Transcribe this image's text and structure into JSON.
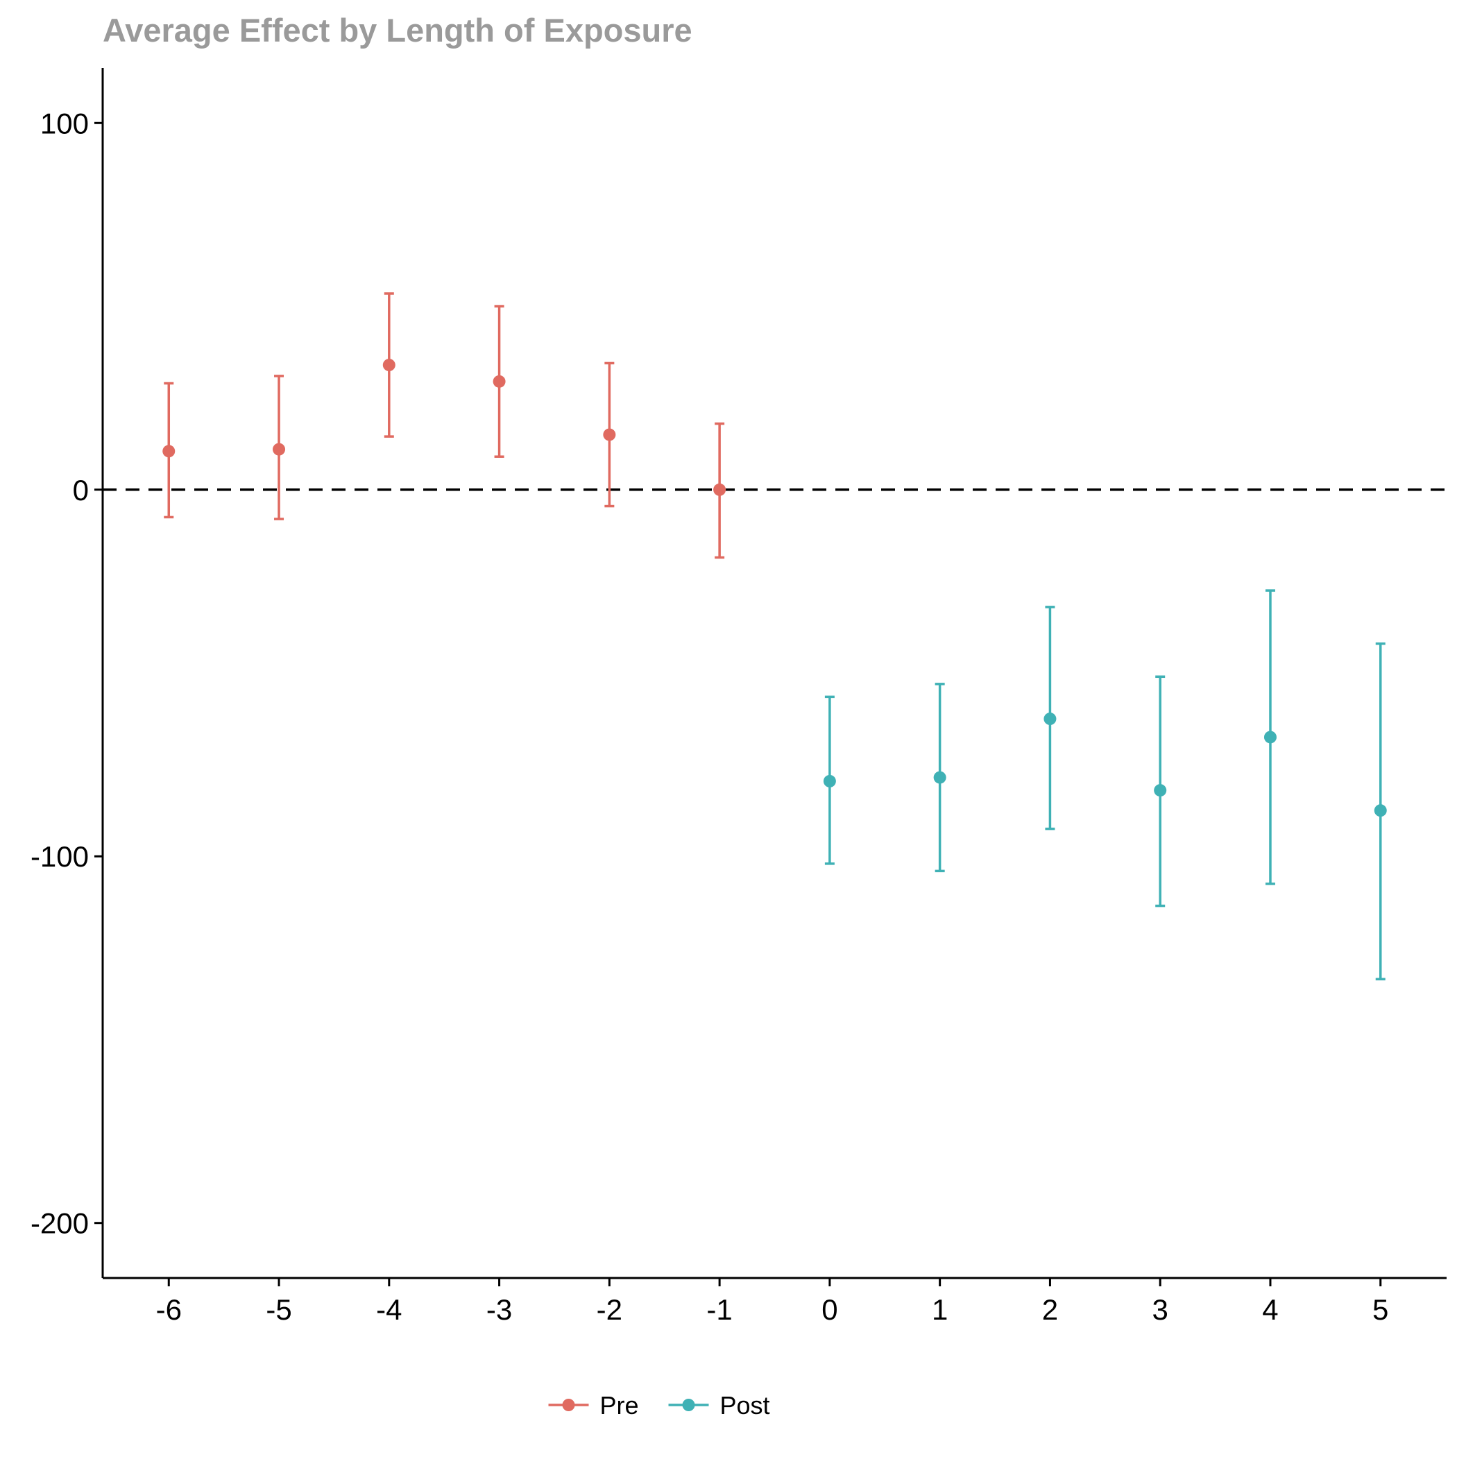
{
  "chart_data": {
    "type": "scatter",
    "title": "Average Effect by Length of Exposure",
    "xlabel": "",
    "ylabel": "",
    "x_ticks": [
      -6,
      -5,
      -4,
      -3,
      -2,
      -1,
      0,
      1,
      2,
      3,
      4,
      5
    ],
    "y_ticks": [
      100,
      0,
      -100,
      -200
    ],
    "xlim": [
      -6.6,
      5.6
    ],
    "ylim": [
      -215,
      115
    ],
    "reference_line": {
      "y": 0,
      "style": "dashed"
    },
    "grid": false,
    "legend_position": "bottom",
    "series": [
      {
        "name": "Pre",
        "color": "#e06a60",
        "points": [
          {
            "x": -6,
            "y": 10.5,
            "lower": -7.5,
            "upper": 29
          },
          {
            "x": -5,
            "y": 11,
            "lower": -8,
            "upper": 31
          },
          {
            "x": -4,
            "y": 34,
            "lower": 14.5,
            "upper": 53.5
          },
          {
            "x": -3,
            "y": 29.5,
            "lower": 9,
            "upper": 50
          },
          {
            "x": -2,
            "y": 15,
            "lower": -4.5,
            "upper": 34.5
          },
          {
            "x": -1,
            "y": 0,
            "lower": -18.5,
            "upper": 18
          }
        ]
      },
      {
        "name": "Post",
        "color": "#3fb1b5",
        "points": [
          {
            "x": 0,
            "y": -79.5,
            "lower": -102,
            "upper": -56.5
          },
          {
            "x": 1,
            "y": -78.5,
            "lower": -104,
            "upper": -53
          },
          {
            "x": 2,
            "y": -62.5,
            "lower": -92.5,
            "upper": -32
          },
          {
            "x": 3,
            "y": -82,
            "lower": -113.5,
            "upper": -51
          },
          {
            "x": 4,
            "y": -67.5,
            "lower": -107.5,
            "upper": -27.5
          },
          {
            "x": 5,
            "y": -87.5,
            "lower": -133.5,
            "upper": -42
          }
        ]
      }
    ]
  }
}
